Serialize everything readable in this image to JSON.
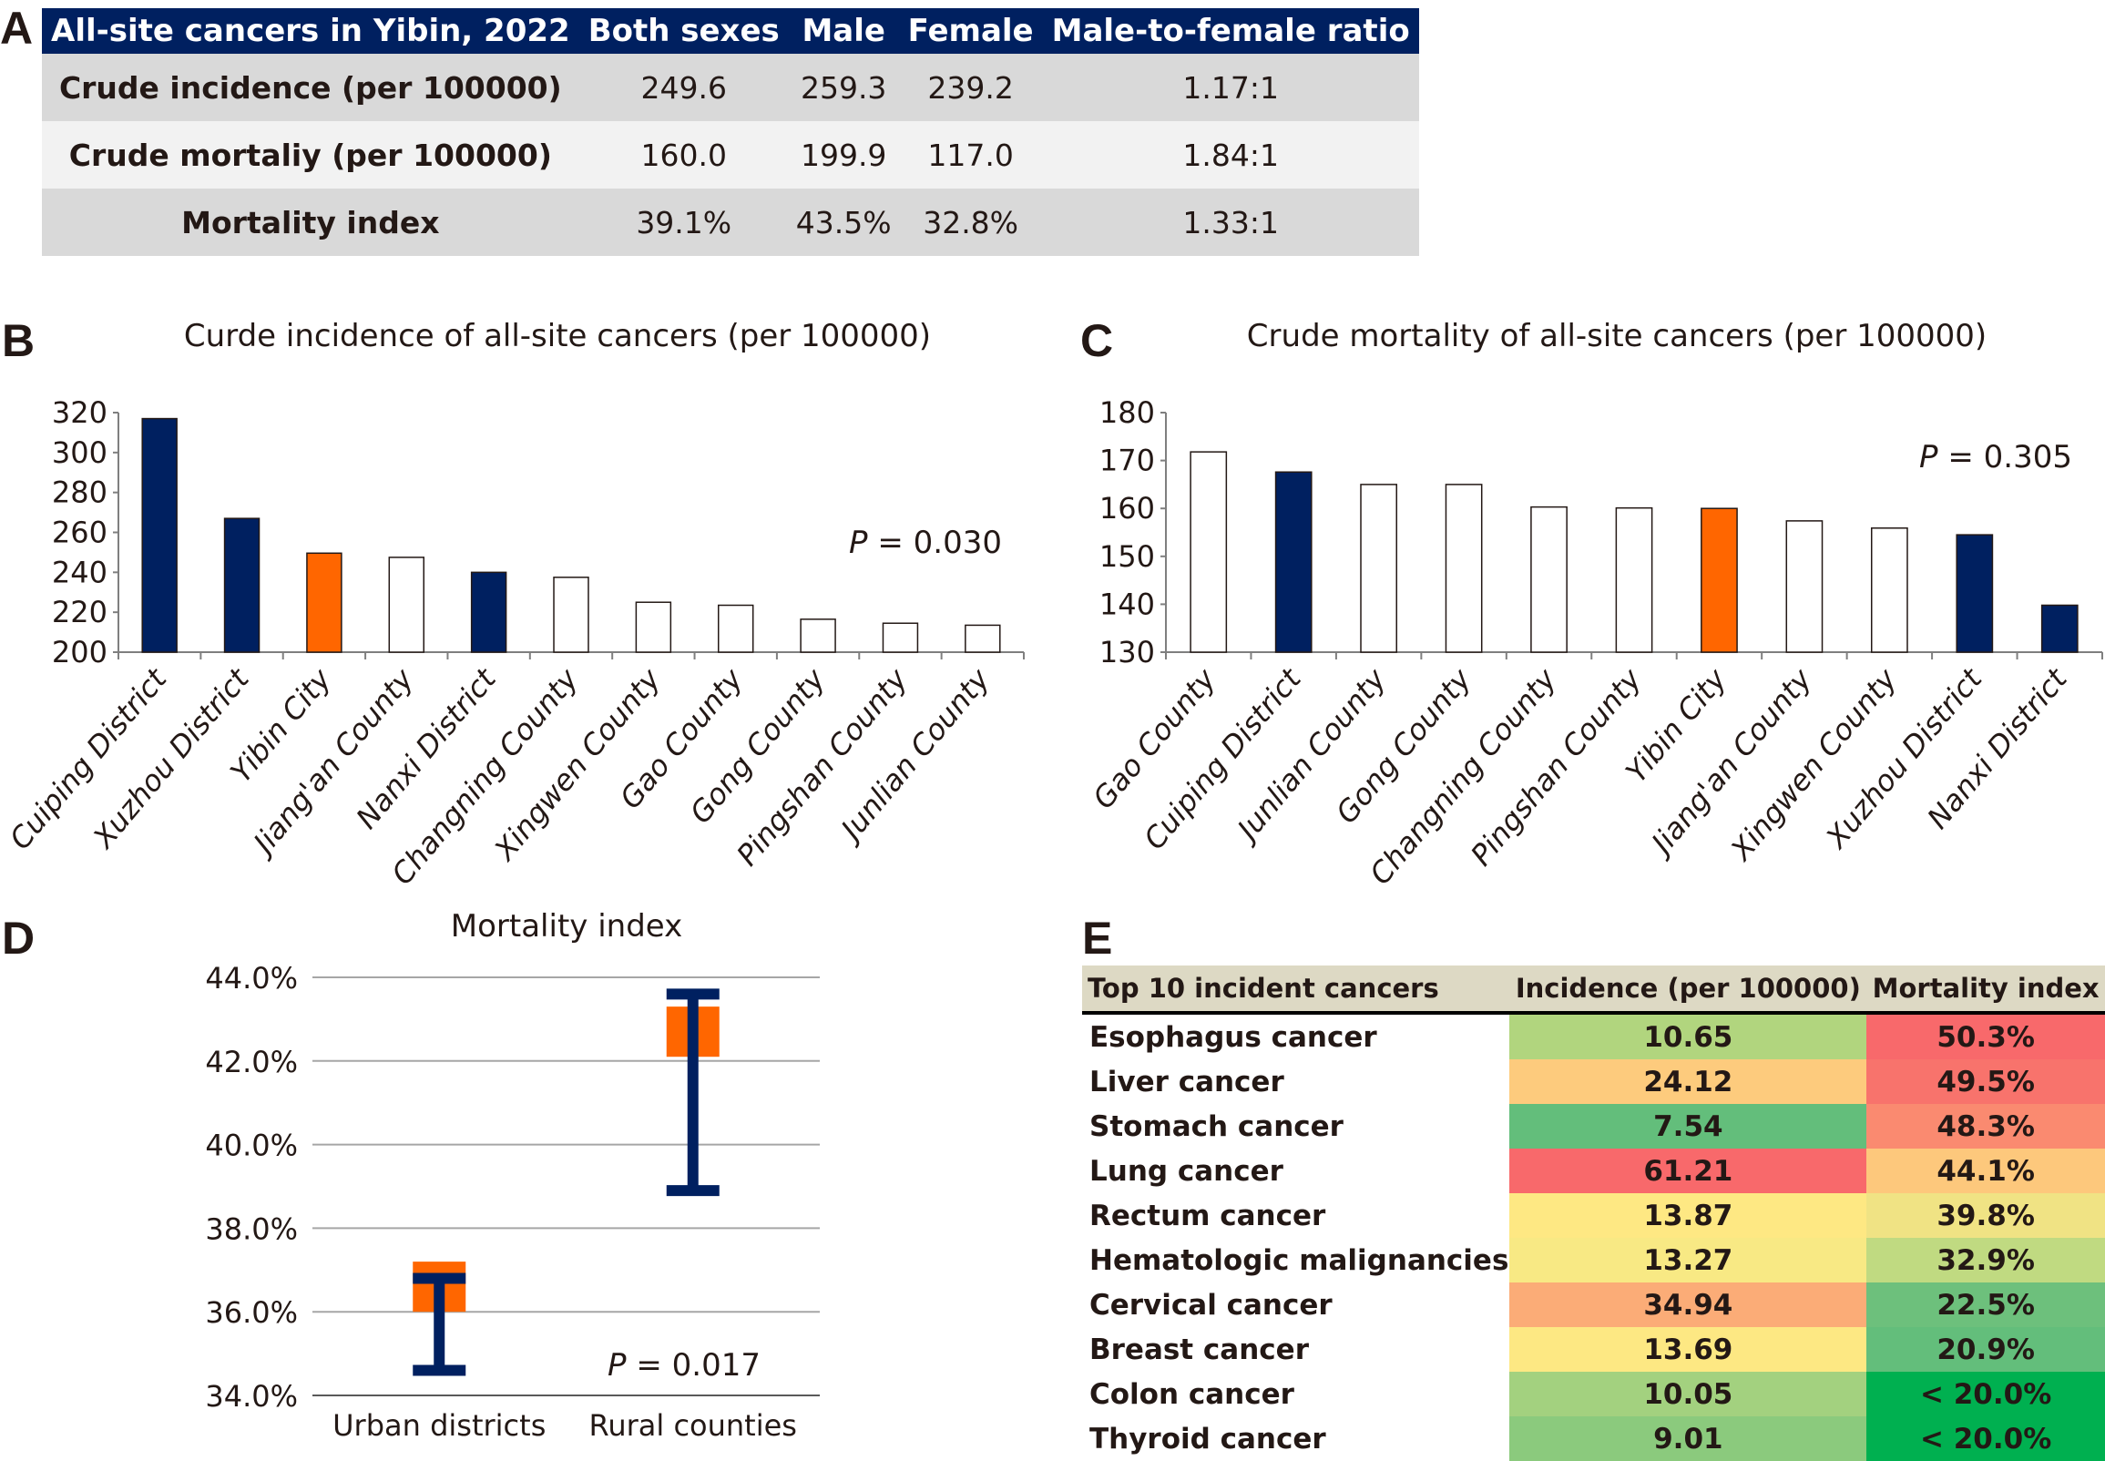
{
  "panels": {
    "a": "A",
    "b": "B",
    "c": "C",
    "d": "D",
    "e": "E"
  },
  "table_a": {
    "headers": [
      "All-site cancers in Yibin, 2022",
      "Both sexes",
      "Male",
      "Female",
      "Male-to-female ratio"
    ],
    "rows": [
      {
        "label": "Crude incidence (per 100000)",
        "both": "249.6",
        "male": "259.3",
        "female": "239.2",
        "ratio": "1.17:1"
      },
      {
        "label": "Crude mortaliy (per 100000)",
        "both": "160.0",
        "male": "199.9",
        "female": "117.0",
        "ratio": "1.84:1"
      },
      {
        "label": "Mortality index",
        "both": "39.1%",
        "male": "43.5%",
        "female": "32.8%",
        "ratio": "1.33:1"
      }
    ]
  },
  "colors": {
    "urban": "#002060",
    "city": "#ff6600",
    "county": "#ffffff",
    "header_a": "#002060",
    "header_e": "#ddd9c4"
  },
  "chart_data": [
    {
      "id": "B",
      "type": "bar",
      "title": "Curde incidence of all-site cancers (per 100000)",
      "annotation": {
        "italic": "P",
        "text": " = 0.030"
      },
      "categories": [
        "Cuiping District",
        "Xuzhou District",
        "Yibin City",
        "Jiang'an County",
        "Nanxi District",
        "Changning County",
        "Xingwen County",
        "Gao County",
        "Gong County",
        "Pingshan County",
        "Junlian County"
      ],
      "values": [
        317.0,
        267.0,
        249.6,
        247.5,
        240.0,
        237.5,
        225.0,
        223.5,
        216.5,
        214.5,
        213.5
      ],
      "groups": [
        "urban",
        "urban",
        "city",
        "county",
        "urban",
        "county",
        "county",
        "county",
        "county",
        "county",
        "county"
      ],
      "ylim": [
        200,
        320
      ],
      "yticks": [
        200,
        220,
        240,
        260,
        280,
        300,
        320
      ],
      "xlabel": "",
      "ylabel": "",
      "grid": false
    },
    {
      "id": "C",
      "type": "bar",
      "title": "Crude mortality of all-site cancers (per 100000)",
      "annotation": {
        "italic": "P",
        "text": " = 0.305"
      },
      "categories": [
        "Gao County",
        "Cuiping District",
        "Junlian County",
        "Gong County",
        "Changning County",
        "Pingshan County",
        "Yibin City",
        "Jiang'an County",
        "Xingwen County",
        "Xuzhou District",
        "Nanxi District"
      ],
      "values": [
        171.8,
        167.6,
        165.0,
        165.0,
        160.3,
        160.1,
        160.0,
        157.4,
        155.9,
        154.5,
        139.8
      ],
      "groups": [
        "county",
        "urban",
        "county",
        "county",
        "county",
        "county",
        "city",
        "county",
        "county",
        "urban",
        "urban"
      ],
      "ylim": [
        130,
        180
      ],
      "yticks": [
        130,
        140,
        150,
        160,
        170,
        180
      ],
      "xlabel": "",
      "ylabel": "",
      "grid": false
    },
    {
      "id": "D",
      "type": "box",
      "title": "Mortality index",
      "annotation": {
        "italic": "P",
        "text": " = 0.017"
      },
      "categories": [
        "Urban districts",
        "Rural counties"
      ],
      "series": [
        {
          "name": "Urban districts",
          "box_low": 36.0,
          "box_high": 37.2,
          "whisker_low": 34.6,
          "whisker_high": 36.8
        },
        {
          "name": "Rural counties",
          "box_low": 42.1,
          "box_high": 43.3,
          "whisker_low": 38.9,
          "whisker_high": 43.6
        }
      ],
      "ylim": [
        34.0,
        44.0
      ],
      "yticks": [
        34.0,
        36.0,
        38.0,
        40.0,
        42.0,
        44.0
      ],
      "ytick_format": "percent-1dp",
      "xlabel": "",
      "ylabel": "",
      "grid": true
    }
  ],
  "table_e": {
    "headers": [
      "Top 10 incident cancers",
      "Incidence (per 100000)",
      "Mortality index"
    ],
    "rows": [
      {
        "name": "Esophagus cancer",
        "incidence": "10.65",
        "inc_color": "#b1d57e",
        "mortality": "50.3%",
        "mort_color": "#f8696b"
      },
      {
        "name": "Liver cancer",
        "incidence": "24.12",
        "inc_color": "#fdcb7d",
        "mortality": "49.5%",
        "mort_color": "#f8736c"
      },
      {
        "name": "Stomach cancer",
        "incidence": "7.54",
        "inc_color": "#63be7b",
        "mortality": "48.3%",
        "mort_color": "#fa8a70"
      },
      {
        "name": "Lung cancer",
        "incidence": "61.21",
        "inc_color": "#f8696b",
        "mortality": "44.1%",
        "mort_color": "#fdc87c"
      },
      {
        "name": "Rectum cancer",
        "incidence": "13.87",
        "inc_color": "#fee883",
        "mortality": "39.8%",
        "mort_color": "#f0e384"
      },
      {
        "name": "Hematologic malignancies",
        "incidence": "13.27",
        "inc_color": "#f8e984",
        "mortality": "32.9%",
        "mort_color": "#c0da81"
      },
      {
        "name": "Cervical cancer",
        "incidence": "34.94",
        "inc_color": "#fbac77",
        "mortality": "22.5%",
        "mort_color": "#6dc07c"
      },
      {
        "name": "Breast cancer",
        "incidence": "13.69",
        "inc_color": "#fde883",
        "mortality": "20.9%",
        "mort_color": "#63be7b"
      },
      {
        "name": "Colon cancer",
        "incidence": "10.05",
        "inc_color": "#a3d17f",
        "mortality": "< 20.0%",
        "mort_color": "#00b050"
      },
      {
        "name": "Thyroid cancer",
        "incidence": "9.01",
        "inc_color": "#8bca7d",
        "mortality": "< 20.0%",
        "mort_color": "#00b050"
      }
    ]
  }
}
